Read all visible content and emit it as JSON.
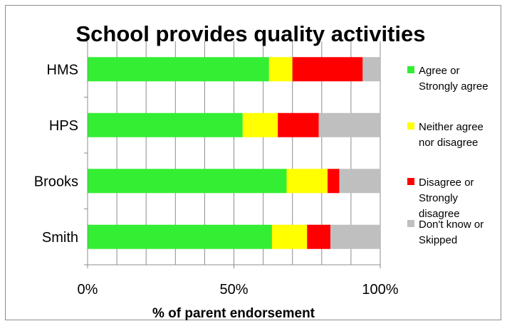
{
  "chart_data": {
    "type": "bar",
    "orientation": "horizontal",
    "stacked": true,
    "title": "School provides quality activities",
    "xlabel": "% of parent endorsement",
    "ylabel": "",
    "xlim": [
      0,
      100
    ],
    "x_ticks": [
      "0%",
      "50%",
      "100%"
    ],
    "grid": true,
    "legend_position": "right",
    "categories": [
      "HMS",
      "HPS",
      "Brooks",
      "Smith"
    ],
    "series": [
      {
        "name": "Agree or Strongly agree",
        "color": "#33ee33",
        "values": [
          62,
          53,
          68,
          63
        ]
      },
      {
        "name": "Neither agree nor disagree",
        "color": "#ffff00",
        "values": [
          8,
          12,
          14,
          12
        ]
      },
      {
        "name": "Disagree or Strongly disagree",
        "color": "#ff0000",
        "values": [
          24,
          14,
          4,
          8
        ]
      },
      {
        "name": "Don't know or Skipped",
        "color": "#bfbfbf",
        "values": [
          6,
          21,
          14,
          17
        ]
      }
    ],
    "legend_lines": [
      [
        "Agree or",
        "Strongly agree"
      ],
      [
        "Neither agree",
        "nor disagree"
      ],
      [
        "Disagree or",
        "Strongly",
        "disagree"
      ],
      [
        "Don't know or",
        "Skipped"
      ]
    ]
  }
}
